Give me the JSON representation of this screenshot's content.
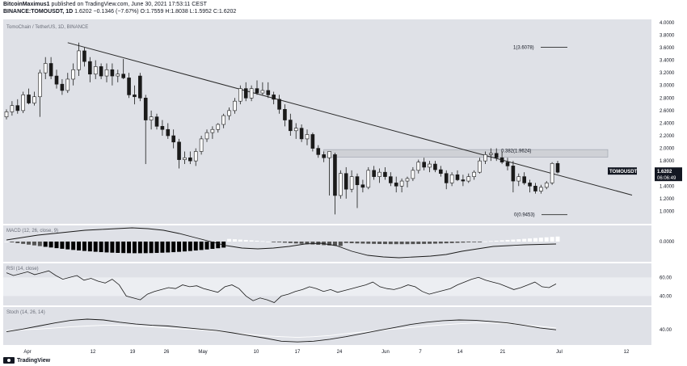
{
  "header": {
    "publisher": "BitcoinMaximus1",
    "published_text": "published on TradingView.com, June 30, 2021 17:53:11 CEST",
    "symbol": "BINANCE:TOMOUSDT, 1D",
    "last": "1.6202",
    "change": "−0.1346 (−7.67%)",
    "o_label": "O:",
    "o": "1.7559",
    "h_label": "H:",
    "h": "1.8038",
    "l_label": "L:",
    "l": "1.5952",
    "c_label": "C:",
    "c": "1.6202"
  },
  "footer": {
    "logo_text": "TradingView"
  },
  "colors": {
    "panel_bg": "#dfe1e7",
    "candle_up": "#ffffff",
    "candle_down": "#1a1a1a",
    "line": "#2a2a2a",
    "zone": "#cfd1d6"
  },
  "chart_data": [
    {
      "type": "candlestick",
      "title": "TomoChain / TetherUS, 1D, BINANCE",
      "ylim": [
        0.8,
        4.05
      ],
      "y_ticks": [
        "4.0000",
        "3.8000",
        "3.6000",
        "3.4000",
        "3.2000",
        "3.0000",
        "2.8000",
        "2.6000",
        "2.4000",
        "2.2000",
        "2.0000",
        "1.8000",
        "1.6000",
        "1.4000",
        "1.2000",
        "1.0000"
      ],
      "x_ticks": [
        "Apr",
        "12",
        "19",
        "26",
        "May",
        "10",
        "17",
        "24",
        "Jun",
        "7",
        "14",
        "21",
        "Jul",
        "12"
      ],
      "price_label": {
        "symbol": "TOMOUSDT",
        "price": "1.6202",
        "countdown": "06:06:49"
      },
      "fib_levels": [
        {
          "label": "1(3.6078)",
          "value": 3.6078
        },
        {
          "label": "0.382(1.9624)",
          "value": 1.9624
        },
        {
          "label": "0(0.9453)",
          "value": 0.9453
        }
      ],
      "resistance_zone": [
        1.86,
        1.98
      ],
      "trendline": [
        {
          "i": 11,
          "y": 3.68
        },
        {
          "i": 103,
          "y": 1.48
        }
      ],
      "candles": [
        {
          "o": 2.5,
          "h": 2.62,
          "l": 2.46,
          "c": 2.58
        },
        {
          "o": 2.58,
          "h": 2.75,
          "l": 2.52,
          "c": 2.68
        },
        {
          "o": 2.68,
          "h": 2.78,
          "l": 2.55,
          "c": 2.6
        },
        {
          "o": 2.6,
          "h": 2.9,
          "l": 2.56,
          "c": 2.85
        },
        {
          "o": 2.85,
          "h": 2.95,
          "l": 2.7,
          "c": 2.72
        },
        {
          "o": 2.72,
          "h": 2.9,
          "l": 2.68,
          "c": 2.82
        },
        {
          "o": 2.82,
          "h": 3.25,
          "l": 2.5,
          "c": 3.2
        },
        {
          "o": 3.2,
          "h": 3.45,
          "l": 3.1,
          "c": 3.35
        },
        {
          "o": 3.35,
          "h": 3.45,
          "l": 3.1,
          "c": 3.15
        },
        {
          "o": 3.15,
          "h": 3.25,
          "l": 2.95,
          "c": 3.02
        },
        {
          "o": 3.02,
          "h": 3.1,
          "l": 2.85,
          "c": 2.92
        },
        {
          "o": 2.92,
          "h": 3.2,
          "l": 2.88,
          "c": 3.1
        },
        {
          "o": 3.1,
          "h": 3.35,
          "l": 3.0,
          "c": 3.25
        },
        {
          "o": 3.25,
          "h": 3.68,
          "l": 3.15,
          "c": 3.55
        },
        {
          "o": 3.55,
          "h": 3.6,
          "l": 3.3,
          "c": 3.38
        },
        {
          "o": 3.38,
          "h": 3.45,
          "l": 3.05,
          "c": 3.18
        },
        {
          "o": 3.18,
          "h": 3.4,
          "l": 3.1,
          "c": 3.3
        },
        {
          "o": 3.3,
          "h": 3.35,
          "l": 3.1,
          "c": 3.15
        },
        {
          "o": 3.15,
          "h": 3.35,
          "l": 3.05,
          "c": 3.25
        },
        {
          "o": 3.25,
          "h": 3.35,
          "l": 3.0,
          "c": 3.15
        },
        {
          "o": 3.15,
          "h": 3.25,
          "l": 3.05,
          "c": 3.18
        },
        {
          "o": 3.18,
          "h": 3.42,
          "l": 3.1,
          "c": 3.12
        },
        {
          "o": 3.12,
          "h": 3.2,
          "l": 2.8,
          "c": 2.85
        },
        {
          "o": 2.85,
          "h": 3.0,
          "l": 2.7,
          "c": 2.82
        },
        {
          "o": 3.15,
          "h": 3.2,
          "l": 2.75,
          "c": 2.8
        },
        {
          "o": 2.8,
          "h": 2.85,
          "l": 1.75,
          "c": 2.45
        },
        {
          "o": 2.45,
          "h": 2.6,
          "l": 2.3,
          "c": 2.5
        },
        {
          "o": 2.5,
          "h": 2.55,
          "l": 2.3,
          "c": 2.35
        },
        {
          "o": 2.35,
          "h": 2.45,
          "l": 2.2,
          "c": 2.3
        },
        {
          "o": 2.3,
          "h": 2.4,
          "l": 2.15,
          "c": 2.2
        },
        {
          "o": 2.2,
          "h": 2.3,
          "l": 2.0,
          "c": 2.1
        },
        {
          "o": 2.1,
          "h": 2.15,
          "l": 1.68,
          "c": 1.82
        },
        {
          "o": 1.82,
          "h": 1.95,
          "l": 1.75,
          "c": 1.85
        },
        {
          "o": 1.85,
          "h": 1.95,
          "l": 1.75,
          "c": 1.8
        },
        {
          "o": 1.8,
          "h": 2.0,
          "l": 1.72,
          "c": 1.95
        },
        {
          "o": 1.95,
          "h": 2.2,
          "l": 1.9,
          "c": 2.15
        },
        {
          "o": 2.15,
          "h": 2.3,
          "l": 2.1,
          "c": 2.25
        },
        {
          "o": 2.25,
          "h": 2.35,
          "l": 2.15,
          "c": 2.3
        },
        {
          "o": 2.3,
          "h": 2.4,
          "l": 2.25,
          "c": 2.38
        },
        {
          "o": 2.38,
          "h": 2.55,
          "l": 2.32,
          "c": 2.52
        },
        {
          "o": 2.52,
          "h": 2.65,
          "l": 2.45,
          "c": 2.6
        },
        {
          "o": 2.6,
          "h": 2.8,
          "l": 2.55,
          "c": 2.75
        },
        {
          "o": 2.75,
          "h": 3.0,
          "l": 2.7,
          "c": 2.95
        },
        {
          "o": 2.95,
          "h": 3.05,
          "l": 2.75,
          "c": 2.8
        },
        {
          "o": 2.8,
          "h": 3.0,
          "l": 2.75,
          "c": 2.95
        },
        {
          "o": 2.95,
          "h": 3.08,
          "l": 2.85,
          "c": 2.88
        },
        {
          "o": 2.88,
          "h": 3.05,
          "l": 2.85,
          "c": 2.92
        },
        {
          "o": 2.92,
          "h": 3.05,
          "l": 2.8,
          "c": 2.85
        },
        {
          "o": 2.85,
          "h": 2.9,
          "l": 2.7,
          "c": 2.78
        },
        {
          "o": 2.78,
          "h": 2.85,
          "l": 2.55,
          "c": 2.62
        },
        {
          "o": 2.62,
          "h": 2.7,
          "l": 2.35,
          "c": 2.45
        },
        {
          "o": 2.45,
          "h": 2.55,
          "l": 2.2,
          "c": 2.28
        },
        {
          "o": 2.28,
          "h": 2.4,
          "l": 2.15,
          "c": 2.32
        },
        {
          "o": 2.32,
          "h": 2.38,
          "l": 2.1,
          "c": 2.15
        },
        {
          "o": 2.15,
          "h": 2.3,
          "l": 2.05,
          "c": 2.22
        },
        {
          "o": 2.22,
          "h": 2.25,
          "l": 1.95,
          "c": 2.0
        },
        {
          "o": 2.0,
          "h": 2.05,
          "l": 1.85,
          "c": 1.9
        },
        {
          "o": 1.9,
          "h": 1.95,
          "l": 1.78,
          "c": 1.85
        },
        {
          "o": 1.85,
          "h": 1.95,
          "l": 1.25,
          "c": 1.95
        },
        {
          "o": 1.9,
          "h": 1.93,
          "l": 0.95,
          "c": 1.25
        },
        {
          "o": 1.25,
          "h": 1.65,
          "l": 1.2,
          "c": 1.6
        },
        {
          "o": 1.6,
          "h": 1.7,
          "l": 1.2,
          "c": 1.35
        },
        {
          "o": 1.35,
          "h": 1.65,
          "l": 1.3,
          "c": 1.55
        },
        {
          "o": 1.55,
          "h": 1.6,
          "l": 1.05,
          "c": 1.42
        },
        {
          "o": 1.42,
          "h": 1.5,
          "l": 1.3,
          "c": 1.38
        },
        {
          "o": 1.38,
          "h": 1.7,
          "l": 1.35,
          "c": 1.65
        },
        {
          "o": 1.65,
          "h": 1.72,
          "l": 1.5,
          "c": 1.55
        },
        {
          "o": 1.55,
          "h": 1.68,
          "l": 1.45,
          "c": 1.62
        },
        {
          "o": 1.62,
          "h": 1.7,
          "l": 1.5,
          "c": 1.55
        },
        {
          "o": 1.55,
          "h": 1.62,
          "l": 1.4,
          "c": 1.45
        },
        {
          "o": 1.45,
          "h": 1.55,
          "l": 1.3,
          "c": 1.4
        },
        {
          "o": 1.4,
          "h": 1.52,
          "l": 1.3,
          "c": 1.48
        },
        {
          "o": 1.48,
          "h": 1.55,
          "l": 1.38,
          "c": 1.52
        },
        {
          "o": 1.52,
          "h": 1.7,
          "l": 1.48,
          "c": 1.65
        },
        {
          "o": 1.65,
          "h": 1.82,
          "l": 1.6,
          "c": 1.78
        },
        {
          "o": 1.78,
          "h": 1.85,
          "l": 1.65,
          "c": 1.7
        },
        {
          "o": 1.7,
          "h": 1.8,
          "l": 1.62,
          "c": 1.75
        },
        {
          "o": 1.75,
          "h": 1.8,
          "l": 1.62,
          "c": 1.66
        },
        {
          "o": 1.66,
          "h": 1.72,
          "l": 1.55,
          "c": 1.6
        },
        {
          "o": 1.6,
          "h": 1.65,
          "l": 1.35,
          "c": 1.45
        },
        {
          "o": 1.45,
          "h": 1.62,
          "l": 1.4,
          "c": 1.58
        },
        {
          "o": 1.58,
          "h": 1.65,
          "l": 1.48,
          "c": 1.5
        },
        {
          "o": 1.5,
          "h": 1.58,
          "l": 1.4,
          "c": 1.48
        },
        {
          "o": 1.48,
          "h": 1.6,
          "l": 1.45,
          "c": 1.55
        },
        {
          "o": 1.55,
          "h": 1.65,
          "l": 1.5,
          "c": 1.62
        },
        {
          "o": 1.62,
          "h": 1.85,
          "l": 1.6,
          "c": 1.8
        },
        {
          "o": 1.8,
          "h": 1.95,
          "l": 1.75,
          "c": 1.9
        },
        {
          "o": 1.9,
          "h": 2.0,
          "l": 1.8,
          "c": 1.92
        },
        {
          "o": 1.92,
          "h": 2.0,
          "l": 1.8,
          "c": 1.85
        },
        {
          "o": 1.85,
          "h": 1.95,
          "l": 1.75,
          "c": 1.78
        },
        {
          "o": 1.78,
          "h": 1.85,
          "l": 1.65,
          "c": 1.72
        },
        {
          "o": 1.72,
          "h": 1.8,
          "l": 1.3,
          "c": 1.48
        },
        {
          "o": 1.48,
          "h": 1.6,
          "l": 1.4,
          "c": 1.55
        },
        {
          "o": 1.55,
          "h": 1.62,
          "l": 1.42,
          "c": 1.45
        },
        {
          "o": 1.45,
          "h": 1.5,
          "l": 1.3,
          "c": 1.4
        },
        {
          "o": 1.4,
          "h": 1.45,
          "l": 1.28,
          "c": 1.32
        },
        {
          "o": 1.32,
          "h": 1.42,
          "l": 1.28,
          "c": 1.38
        },
        {
          "o": 1.38,
          "h": 1.48,
          "l": 1.35,
          "c": 1.45
        },
        {
          "o": 1.45,
          "h": 1.78,
          "l": 1.42,
          "c": 1.76
        },
        {
          "o": 1.76,
          "h": 1.8,
          "l": 1.6,
          "c": 1.62
        }
      ]
    },
    {
      "type": "histogram",
      "title": "MACD (12, 26, close, 9)",
      "ylim": [
        -0.25,
        0.2
      ],
      "y_ticks": [
        "0.0000"
      ],
      "signal": [
        0.02,
        0.05,
        0.08,
        0.1,
        0.12,
        0.14,
        0.15,
        0.16,
        0.17,
        0.16,
        0.14,
        0.1,
        0.05,
        0.0,
        -0.05,
        -0.08,
        -0.09,
        -0.08,
        -0.06,
        -0.03,
        -0.02,
        -0.05,
        -0.12,
        -0.17,
        -0.19,
        -0.2,
        -0.19,
        -0.18,
        -0.16,
        -0.12,
        -0.09,
        -0.06,
        -0.05,
        -0.04,
        -0.035,
        -0.03
      ]
    },
    {
      "type": "line",
      "title": "RSI (14, close)",
      "ylim": [
        30,
        75
      ],
      "y_ticks": [
        "60.00",
        "40.00"
      ],
      "values": [
        65,
        62,
        64,
        66,
        63,
        65,
        67,
        62,
        58,
        60,
        62,
        57,
        59,
        56,
        54,
        58,
        52,
        40,
        38,
        36,
        42,
        45,
        47,
        49,
        48,
        52,
        50,
        51,
        48,
        46,
        44,
        50,
        52,
        48,
        40,
        35,
        38,
        36,
        33,
        40,
        42,
        45,
        47,
        50,
        48,
        45,
        47,
        44,
        46,
        48,
        50,
        52,
        55,
        50,
        48,
        47,
        49,
        52,
        50,
        45,
        42,
        44,
        46,
        48,
        52,
        55,
        58,
        60,
        57,
        55,
        53,
        50,
        47,
        49,
        52,
        55,
        50,
        49,
        53
      ]
    },
    {
      "type": "line",
      "title": "Stoch (14, 26, 14)",
      "ylim": [
        0,
        100
      ],
      "y_ticks": [
        "40.00"
      ],
      "k": [
        35,
        42,
        50,
        58,
        65,
        68,
        66,
        60,
        55,
        52,
        50,
        46,
        42,
        38,
        32,
        25,
        18,
        10,
        8,
        10,
        15,
        22,
        30,
        38,
        46,
        54,
        60,
        64,
        66,
        65,
        62,
        58,
        52,
        45,
        40
      ],
      "d": [
        38,
        40,
        42,
        45,
        48,
        50,
        52,
        52,
        50,
        48,
        45,
        42,
        40,
        36,
        32,
        28,
        24,
        22,
        20,
        22,
        25,
        30,
        34,
        38,
        42,
        46,
        50,
        53,
        56,
        58,
        58,
        56,
        53,
        49,
        45
      ]
    }
  ]
}
